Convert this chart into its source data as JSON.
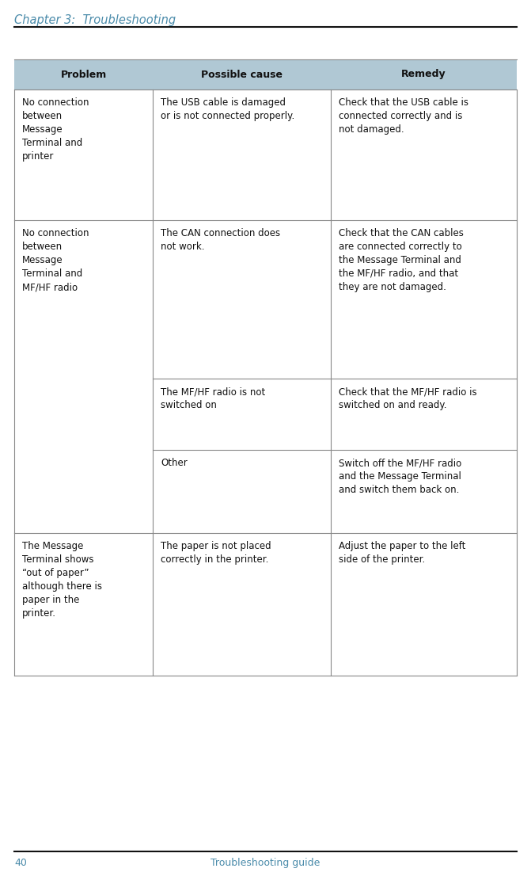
{
  "page_title": "Chapter 3:  Troubleshooting",
  "page_number": "40",
  "page_footer": "Troubleshooting guide",
  "title_color": "#4a8baa",
  "header_bg_color": "#b0c8d4",
  "body_text_color": "#111111",
  "table_border_color": "#888888",
  "line_color": "#111111",
  "headers": [
    "Problem",
    "Possible cause",
    "Remedy"
  ],
  "rows": [
    {
      "problem": "No connection\nbetween\nMessage\nTerminal and\nprinter",
      "causes": [
        "The USB cable is damaged\nor is not connected properly."
      ],
      "remedies": [
        "Check that the USB cable is\nconnected correctly and is\nnot damaged."
      ]
    },
    {
      "problem": "No connection\nbetween\nMessage\nTerminal and\nMF/HF radio",
      "causes": [
        "The CAN connection does\nnot work.",
        "The MF/HF radio is not\nswitched on",
        "Other"
      ],
      "remedies": [
        "Check that the CAN cables\nare connected correctly to\nthe Message Terminal and\nthe MF/HF radio, and that\nthey are not damaged.",
        "Check that the MF/HF radio is\nswitched on and ready.",
        "Switch off the MF/HF radio\nand the Message Terminal\nand switch them back on."
      ]
    },
    {
      "problem": "The Message\nTerminal shows\n“out of paper”\nalthough there is\npaper in the\nprinter.",
      "causes": [
        "The paper is not placed\ncorrectly in the printer."
      ],
      "remedies": [
        "Adjust the paper to the left\nside of the printer."
      ]
    }
  ]
}
